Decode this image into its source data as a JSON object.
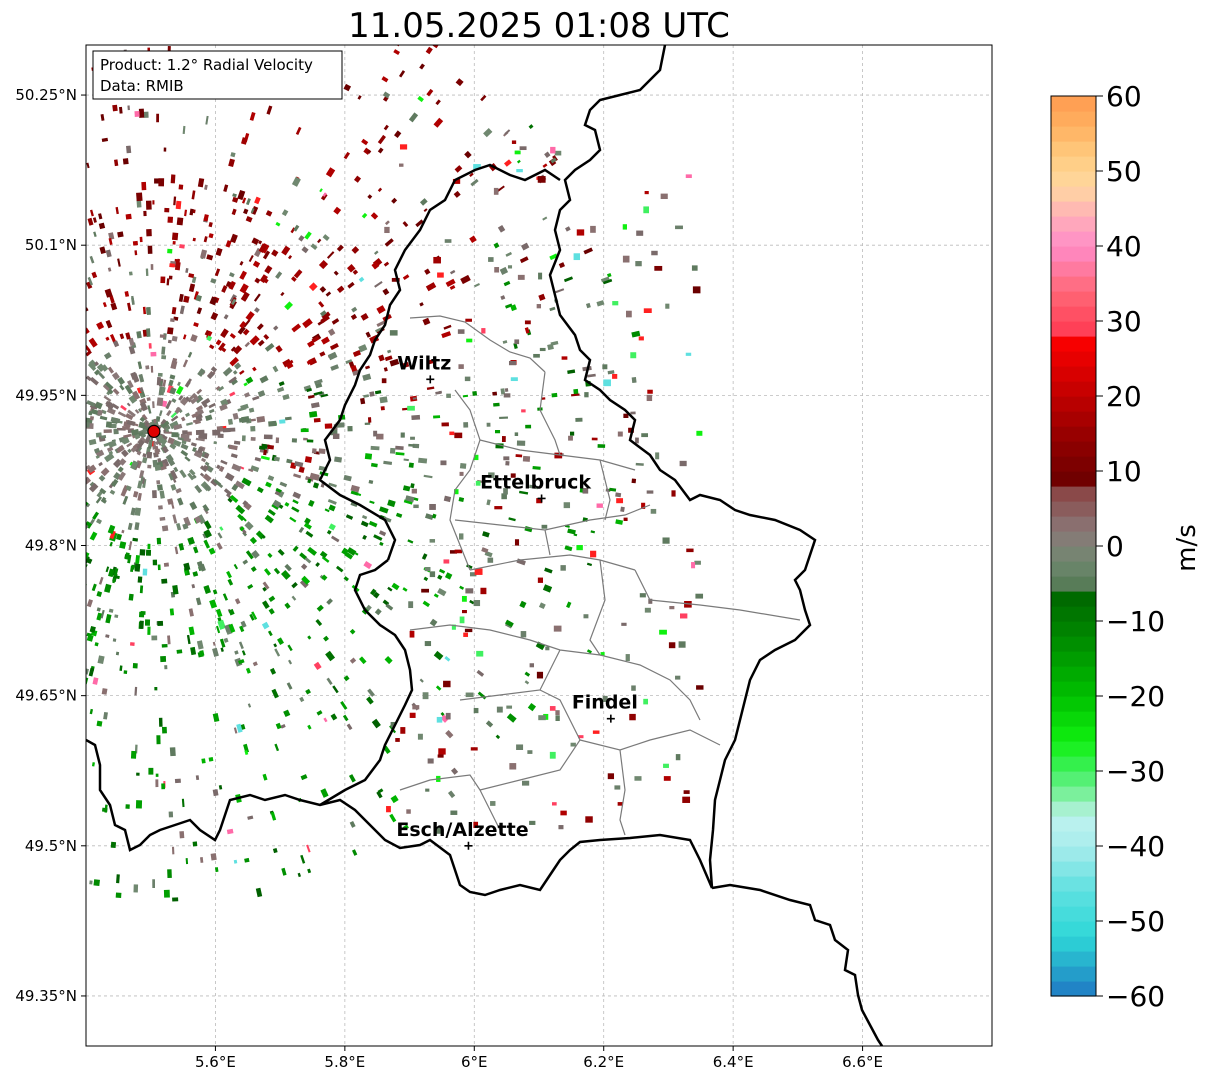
{
  "title": "11.05.2025 01:08 UTC",
  "info_box": {
    "line1": "Product: 1.2° Radial Velocity",
    "line2": "Data: RMIB"
  },
  "map": {
    "lon_range": [
      5.4,
      6.8
    ],
    "lat_range": [
      49.3,
      50.3
    ],
    "lon_ticks": [
      {
        "value": 5.6,
        "label": "5.6°E"
      },
      {
        "value": 5.8,
        "label": "5.8°E"
      },
      {
        "value": 6.0,
        "label": "6°E"
      },
      {
        "value": 6.2,
        "label": "6.2°E"
      },
      {
        "value": 6.4,
        "label": "6.4°E"
      },
      {
        "value": 6.6,
        "label": "6.6°E"
      }
    ],
    "lat_ticks": [
      {
        "value": 50.25,
        "label": "50.25°N"
      },
      {
        "value": 50.1,
        "label": "50.1°N"
      },
      {
        "value": 49.95,
        "label": "49.95°N"
      },
      {
        "value": 49.8,
        "label": "49.8°N"
      },
      {
        "value": 49.65,
        "label": "49.65°N"
      },
      {
        "value": 49.5,
        "label": "49.5°N"
      },
      {
        "value": 49.35,
        "label": "49.35°N"
      }
    ],
    "grid": true,
    "radar_site": {
      "lon": 5.505,
      "lat": 49.914,
      "color": "#e00000"
    },
    "cities": [
      {
        "name": "Wiltz",
        "lon": 5.932,
        "lat": 49.966
      },
      {
        "name": "Ettelbruck",
        "lon": 6.104,
        "lat": 49.847
      },
      {
        "name": "Findel",
        "lon": 6.211,
        "lat": 49.627
      },
      {
        "name": "Esch/Alzette",
        "lon": 5.991,
        "lat": 49.5
      }
    ]
  },
  "colorbar": {
    "label": "m/s",
    "range": [
      -60,
      60
    ],
    "ticks": [
      {
        "value": 60,
        "label": "60"
      },
      {
        "value": 50,
        "label": "50"
      },
      {
        "value": 40,
        "label": "40"
      },
      {
        "value": 30,
        "label": "30"
      },
      {
        "value": 20,
        "label": "20"
      },
      {
        "value": 10,
        "label": "10"
      },
      {
        "value": 0,
        "label": "0"
      },
      {
        "value": -10,
        "label": "−10"
      },
      {
        "value": -20,
        "label": "−20"
      },
      {
        "value": -30,
        "label": "−30"
      },
      {
        "value": -40,
        "label": "−40"
      },
      {
        "value": -50,
        "label": "−50"
      },
      {
        "value": -60,
        "label": "−60"
      }
    ],
    "stops": [
      {
        "v": -60,
        "color": "#1f78c4"
      },
      {
        "v": -56,
        "color": "#26a9cc"
      },
      {
        "v": -52,
        "color": "#2ed8d8"
      },
      {
        "v": -46,
        "color": "#5ee0e0"
      },
      {
        "v": -40,
        "color": "#a8ecec"
      },
      {
        "v": -36,
        "color": "#bff2ee"
      },
      {
        "v": -34,
        "color": "#8ef0b0"
      },
      {
        "v": -30,
        "color": "#40f060"
      },
      {
        "v": -26,
        "color": "#10f010"
      },
      {
        "v": -20,
        "color": "#00c000"
      },
      {
        "v": -12,
        "color": "#008800"
      },
      {
        "v": -6,
        "color": "#006400"
      },
      {
        "v": -6,
        "color": "#507850"
      },
      {
        "v": -2,
        "color": "#708870"
      },
      {
        "v": 2,
        "color": "#8a7878"
      },
      {
        "v": 8,
        "color": "#8a4040"
      },
      {
        "v": 8,
        "color": "#6a0000"
      },
      {
        "v": 14,
        "color": "#900000"
      },
      {
        "v": 20,
        "color": "#c00000"
      },
      {
        "v": 28,
        "color": "#ff0000"
      },
      {
        "v": 28,
        "color": "#ff3850"
      },
      {
        "v": 34,
        "color": "#ff6878"
      },
      {
        "v": 40,
        "color": "#ff8cc8"
      },
      {
        "v": 44,
        "color": "#ffb0b8"
      },
      {
        "v": 48,
        "color": "#ffd8a0"
      },
      {
        "v": 52,
        "color": "#ffcc80"
      },
      {
        "v": 56,
        "color": "#ffb060"
      },
      {
        "v": 60,
        "color": "#ff9a50"
      }
    ]
  }
}
